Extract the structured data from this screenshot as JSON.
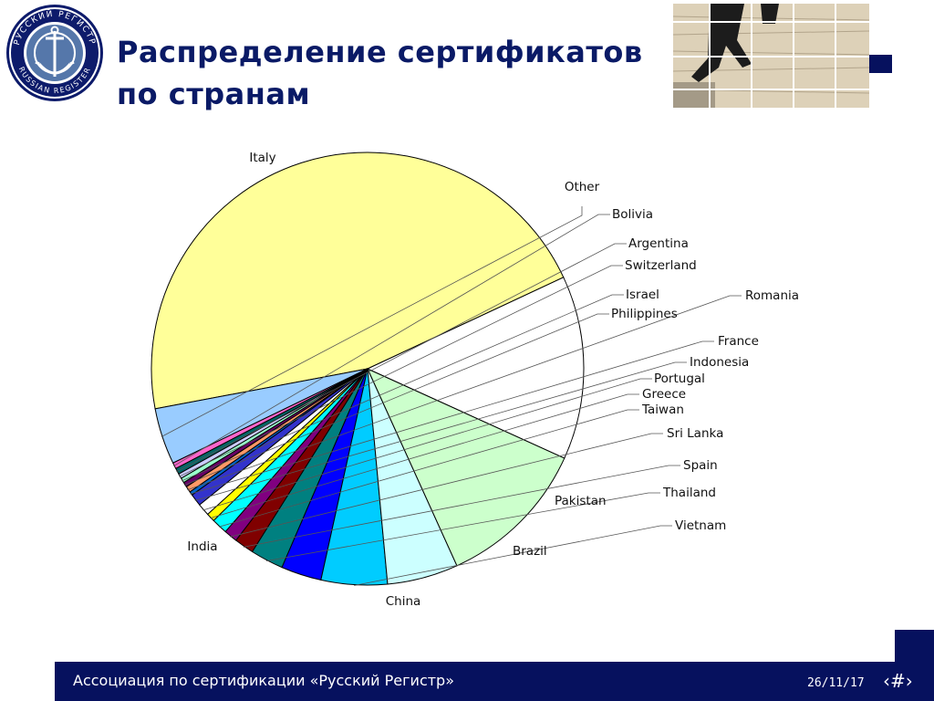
{
  "logo": {
    "text_top": "РУССКИЙ РЕГИСТР",
    "text_bottom": "RUSSIAN REGISTER",
    "icon": "anchor-seal-icon"
  },
  "title": {
    "line1": "Распределение сертификатов",
    "line2": "по странам"
  },
  "photo": {
    "icon": "stairs-climbing-photo"
  },
  "chart_data": {
    "type": "pie",
    "title": "",
    "start_angle_deg": -25,
    "direction": "counterclockwise",
    "labels": [
      "Italy",
      "Other",
      "Bolivia",
      "Argentina",
      "Switzerland",
      "Israel",
      "Philippines",
      "Romania",
      "France",
      "Indonesia",
      "Portugal",
      "Greece",
      "Taiwan",
      "Sri Lanka",
      "Spain",
      "Thailand",
      "Pakistan",
      "Vietnam",
      "Brazil",
      "China",
      "India"
    ],
    "values": [
      50.3,
      4.6,
      0.5,
      0.5,
      0.4,
      0.4,
      0.4,
      0.5,
      0.3,
      1.0,
      1.0,
      0.7,
      1.3,
      1.1,
      1.6,
      2.7,
      3.3,
      5.4,
      5.8,
      12.5,
      15.0
    ],
    "colors": [
      "#ffff99",
      "#99ccff",
      "#ff66cc",
      "#006666",
      "#ccccff",
      "#99ffcc",
      "#660066",
      "#ff9966",
      "#0066cc",
      "#3333cc",
      "#ffffff",
      "#ffff00",
      "#00ffff",
      "#800080",
      "#800000",
      "#008080",
      "#0000ff",
      "#00ccff",
      "#ccffff",
      "#ccffcc",
      "#ffffff"
    ]
  },
  "footer": {
    "org": "Ассоциация по сертификации «Русский Регистр»",
    "date": "26/11/17",
    "page": "‹#›"
  }
}
